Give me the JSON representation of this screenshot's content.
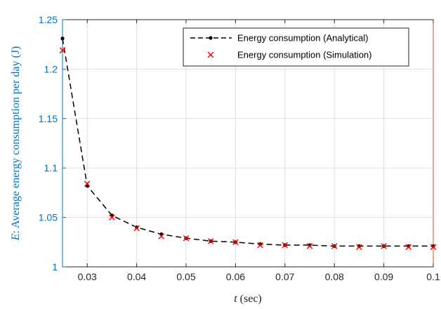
{
  "chart_data": {
    "type": "line",
    "xlabel": {
      "var": "t",
      "rest": " (sec)"
    },
    "ylabel": {
      "var": "E",
      "rest": ": Average energy consumption per day (J)"
    },
    "xlim": [
      0.025,
      0.1
    ],
    "ylim": [
      1.0,
      1.25
    ],
    "xticks": [
      0.03,
      0.04,
      0.05,
      0.06,
      0.07,
      0.08,
      0.09,
      0.1
    ],
    "xtick_labels": [
      "0.03",
      "0.04",
      "0.05",
      "0.06",
      "0.07",
      "0.08",
      "0.09",
      "0.1"
    ],
    "yticks": [
      1.0,
      1.05,
      1.1,
      1.15,
      1.2,
      1.25
    ],
    "ytick_labels": [
      "1",
      "1.05",
      "1.1",
      "1.15",
      "1.2",
      "1.25"
    ],
    "grid": true,
    "legend_position": "top-right",
    "x": [
      0.025,
      0.03,
      0.035,
      0.04,
      0.045,
      0.05,
      0.055,
      0.06,
      0.065,
      0.07,
      0.075,
      0.08,
      0.085,
      0.09,
      0.095,
      0.1
    ],
    "series": [
      {
        "name": "Energy consumption (Analytical)",
        "style": "dashed-line-dot",
        "color": "#000000",
        "values": [
          1.231,
          1.082,
          1.052,
          1.04,
          1.033,
          1.029,
          1.026,
          1.025,
          1.023,
          1.022,
          1.022,
          1.021,
          1.021,
          1.021,
          1.021,
          1.021
        ]
      },
      {
        "name": "Energy consumption (Simulation)",
        "style": "x-marker",
        "color": "#ff0000",
        "values": [
          1.219,
          1.084,
          1.05,
          1.039,
          1.031,
          1.029,
          1.026,
          1.025,
          1.022,
          1.022,
          1.021,
          1.021,
          1.02,
          1.021,
          1.02,
          1.02
        ]
      }
    ],
    "colors": {
      "axis": "#262626",
      "yaxis": "#0072bd",
      "right_axis": "#d95319",
      "grid": "#dfdfdf"
    }
  }
}
